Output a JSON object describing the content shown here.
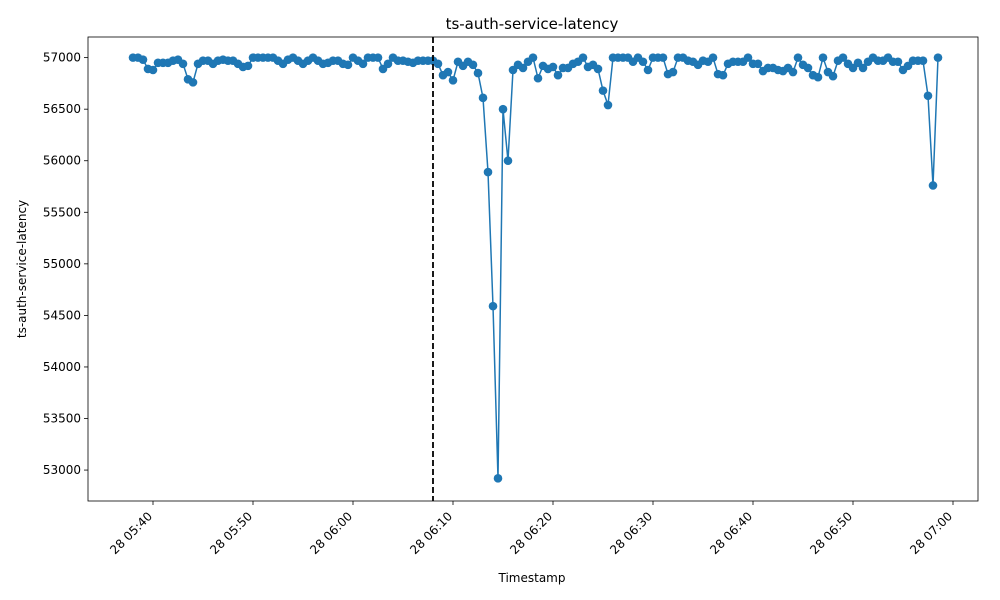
{
  "chart_data": {
    "type": "line",
    "title": "ts-auth-service-latency",
    "xlabel": "Timestamp",
    "ylabel": "ts-auth-service-latency",
    "x_range": [
      "2025-01-28T05:33:30",
      "2025-01-28T07:02:30"
    ],
    "ylim": [
      52700,
      57200
    ],
    "x_ticks": [
      {
        "t": "2025-01-28T05:40:00",
        "label": "28 05:40"
      },
      {
        "t": "2025-01-28T05:50:00",
        "label": "28 05:50"
      },
      {
        "t": "2025-01-28T06:00:00",
        "label": "28 06:00"
      },
      {
        "t": "2025-01-28T06:10:00",
        "label": "28 06:10"
      },
      {
        "t": "2025-01-28T06:20:00",
        "label": "28 06:20"
      },
      {
        "t": "2025-01-28T06:30:00",
        "label": "28 06:30"
      },
      {
        "t": "2025-01-28T06:40:00",
        "label": "28 06:40"
      },
      {
        "t": "2025-01-28T06:50:00",
        "label": "28 06:50"
      },
      {
        "t": "2025-01-28T07:00:00",
        "label": "28 07:00"
      }
    ],
    "y_ticks": [
      53000,
      53500,
      54000,
      54500,
      55000,
      55500,
      56000,
      56500,
      57000
    ],
    "grid": false,
    "series_color": "#1f77b4",
    "vline": {
      "t": "2025-01-28T06:08:00",
      "color": "#000000",
      "style": "dashed"
    },
    "start": "2025-01-28T05:38:00",
    "interval_seconds": 30,
    "values": [
      57000,
      57000,
      56980,
      56890,
      56880,
      56950,
      56950,
      56950,
      56970,
      56980,
      56940,
      56790,
      56760,
      56940,
      56970,
      56970,
      56940,
      56970,
      56980,
      56970,
      56970,
      56940,
      56910,
      56920,
      57000,
      57000,
      57000,
      57000,
      57000,
      56970,
      56940,
      56980,
      57000,
      56970,
      56940,
      56970,
      57000,
      56970,
      56940,
      56950,
      56970,
      56970,
      56940,
      56930,
      57000,
      56970,
      56940,
      57000,
      57000,
      57000,
      56890,
      56940,
      57000,
      56970,
      56970,
      56960,
      56950,
      56970,
      56970,
      56970,
      56970,
      56940,
      56830,
      56860,
      56780,
      56960,
      56920,
      56960,
      56930,
      56850,
      56610,
      55890,
      54590,
      52920,
      56500,
      56000,
      56880,
      56930,
      56900,
      56960,
      57000,
      56800,
      56920,
      56890,
      56910,
      56830,
      56900,
      56900,
      56940,
      56960,
      57000,
      56910,
      56930,
      56890,
      56680,
      56540,
      57000,
      57000,
      57000,
      57000,
      56960,
      57000,
      56960,
      56880,
      57000,
      57000,
      57000,
      56840,
      56860,
      57000,
      57000,
      56970,
      56960,
      56930,
      56970,
      56960,
      57000,
      56840,
      56830,
      56940,
      56960,
      56960,
      56960,
      57000,
      56940,
      56940,
      56870,
      56900,
      56900,
      56880,
      56870,
      56900,
      56860,
      57000,
      56930,
      56900,
      56830,
      56810,
      57000,
      56860,
      56820,
      56970,
      57000,
      56940,
      56900,
      56950,
      56900,
      56960,
      57000,
      56970,
      56970,
      57000,
      56960,
      56960,
      56880,
      56920,
      56970,
      56970,
      56970,
      56630,
      55760,
      57000
    ]
  }
}
